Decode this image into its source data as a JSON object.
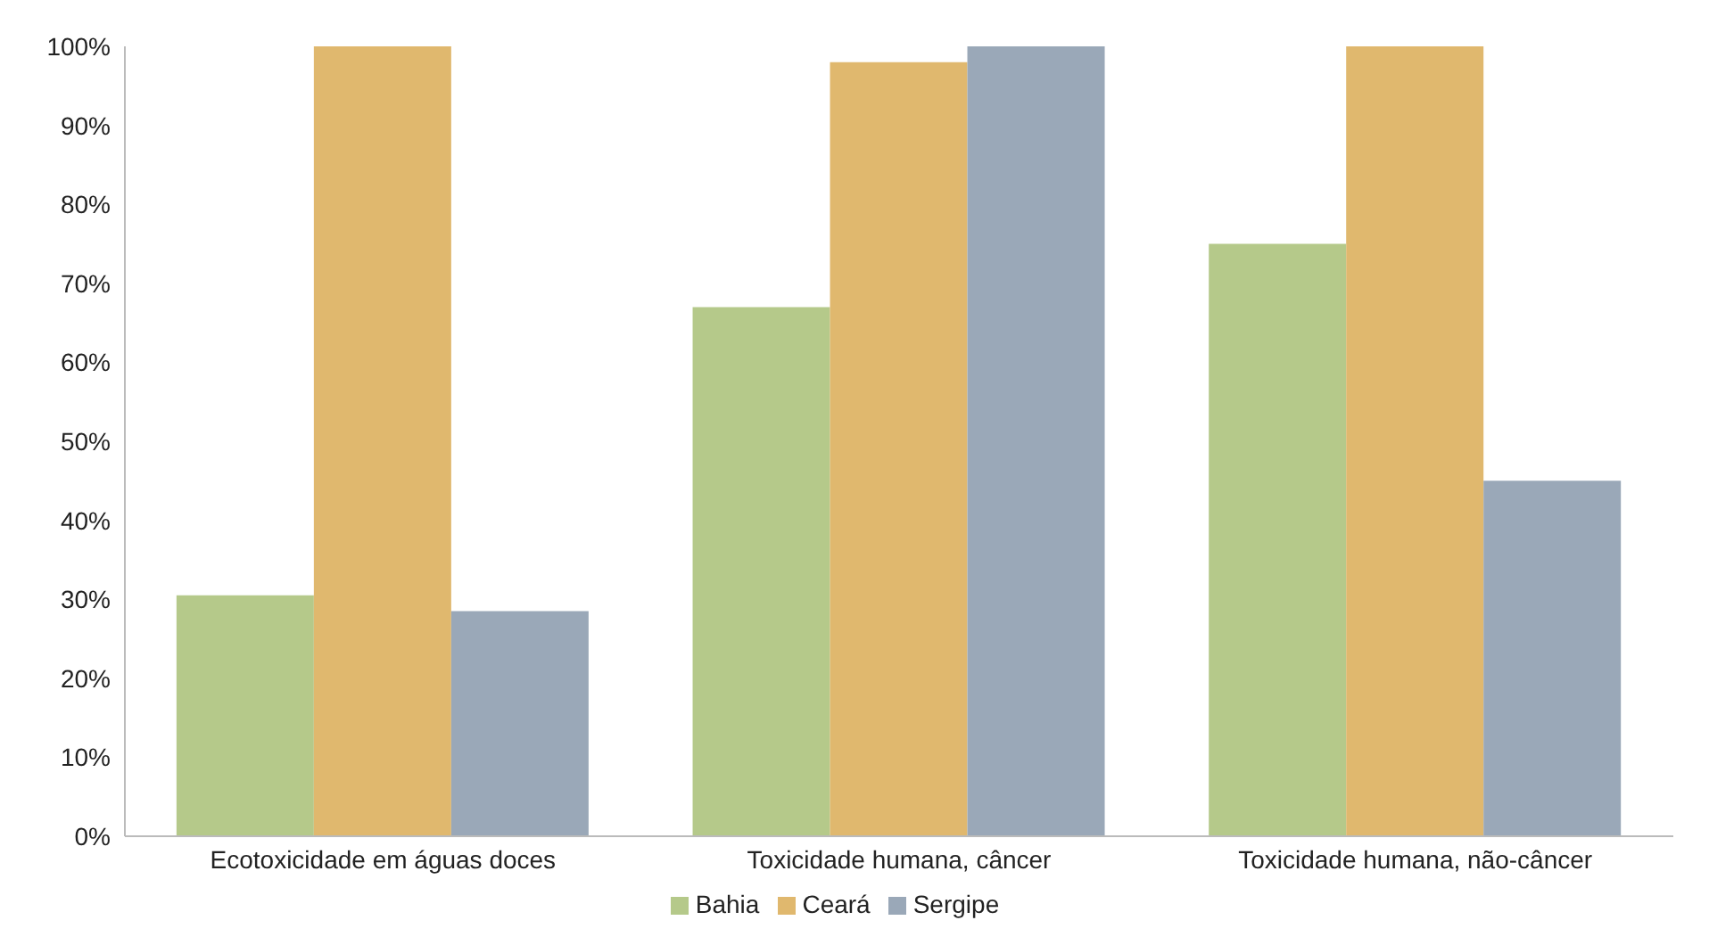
{
  "chart_data": {
    "type": "bar",
    "categories": [
      "Ecotoxicidade em águas doces",
      "Toxicidade humana, câncer",
      "Toxicidade humana, não-câncer"
    ],
    "series": [
      {
        "name": "Bahia",
        "color": "#b5c98a",
        "values": [
          30.5,
          67,
          75
        ]
      },
      {
        "name": "Ceará",
        "color": "#e0b86e",
        "values": [
          100,
          98,
          100
        ]
      },
      {
        "name": "Sergipe",
        "color": "#9aa8b8",
        "values": [
          28.5,
          100,
          45
        ]
      }
    ],
    "ylim": [
      0,
      100
    ],
    "yticks": [
      {
        "value": 0,
        "label": "0%"
      },
      {
        "value": 10,
        "label": "10%"
      },
      {
        "value": 20,
        "label": "20%"
      },
      {
        "value": 30,
        "label": "30%"
      },
      {
        "value": 40,
        "label": "40%"
      },
      {
        "value": 50,
        "label": "50%"
      },
      {
        "value": 60,
        "label": "60%"
      },
      {
        "value": 70,
        "label": "70%"
      },
      {
        "value": 80,
        "label": "80%"
      },
      {
        "value": 90,
        "label": "90%"
      },
      {
        "value": 100,
        "label": "100%"
      }
    ],
    "grid": false,
    "legend": "bottom"
  }
}
